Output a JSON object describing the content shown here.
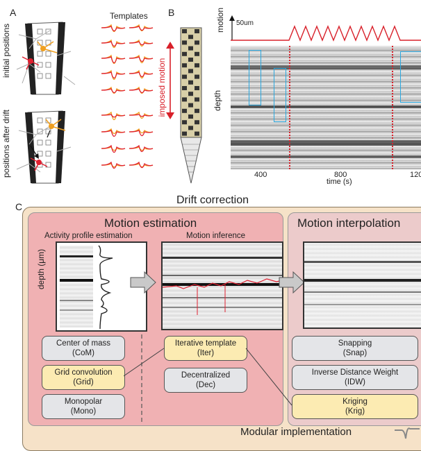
{
  "panel_a": {
    "letter": "A",
    "templates_title": "Templates",
    "label_initial": "initial positions",
    "label_after": "positions after drift"
  },
  "panel_b": {
    "letter": "B",
    "motion_label": "motion",
    "scale_label": "50um",
    "imposed_motion": "imposed motion",
    "depth_label": "depth",
    "time_label": "time (s)",
    "ticks": [
      "400",
      "800",
      "120"
    ]
  },
  "panel_c": {
    "letter": "C",
    "title": "Drift correction",
    "motion_estimation": "Motion estimation",
    "motion_interpolation": "Motion interpolation",
    "activity_profile": "Activity profile estimation",
    "motion_inference": "Motion inference",
    "depth_axis": "depth (μm)",
    "modular": "Modular implementation",
    "methods_left": [
      {
        "name": "Center of mass",
        "abbr": "(CoM)",
        "color": "gray"
      },
      {
        "name": "Grid convolution",
        "abbr": "(Grid)",
        "color": "yellow"
      },
      {
        "name": "Monopolar",
        "abbr": "(Mono)",
        "color": "gray"
      }
    ],
    "methods_mid": [
      {
        "name": "Iterative template",
        "abbr": "(Iter)",
        "color": "yellow"
      },
      {
        "name": "Decentralized",
        "abbr": "(Dec)",
        "color": "gray"
      }
    ],
    "methods_right": [
      {
        "name": "Snapping",
        "abbr": "(Snap)",
        "color": "gray"
      },
      {
        "name": "Inverse Distance Weight",
        "abbr": "(IDW)",
        "color": "gray"
      },
      {
        "name": "Kriging",
        "abbr": "(Krig)",
        "color": "yellow"
      }
    ],
    "colors": {
      "outer": "#f6e2c8",
      "estimation": "#f0b1b3",
      "inner": "#eccbcb",
      "gray_box": "#e4e5e8",
      "yellow_box": "#fcebb2"
    }
  }
}
